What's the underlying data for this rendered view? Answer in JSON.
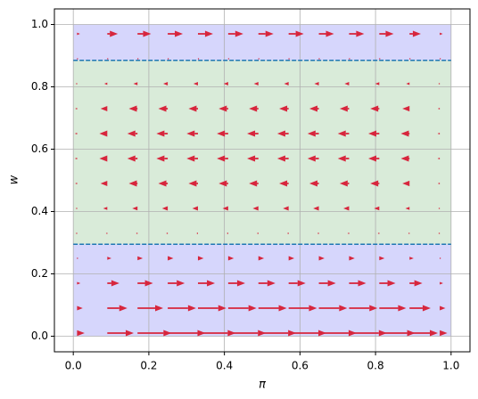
{
  "chart_data": {
    "type": "quiver",
    "xlabel": "π",
    "ylabel": "w",
    "xlim": [
      -0.05,
      1.05
    ],
    "ylim": [
      -0.05,
      1.05
    ],
    "xticks": [
      {
        "value": 0,
        "label": "0.0"
      },
      0.2,
      0.4,
      0.6,
      0.8,
      {
        "value": 1,
        "label": "1.0"
      }
    ],
    "yticks": [
      {
        "value": 0,
        "label": "0.0"
      },
      0.2,
      0.4,
      0.6,
      0.8,
      {
        "value": 1,
        "label": "1.0"
      }
    ],
    "grid": true,
    "regions": [
      {
        "x0": 0,
        "x1": 1,
        "y0": 0,
        "y1": 0.295,
        "color": "#d6d6fc"
      },
      {
        "x0": 0,
        "x1": 1,
        "y0": 0.295,
        "y1": 0.885,
        "color": "#d9ebd9"
      },
      {
        "x0": 0,
        "x1": 1,
        "y0": 0.885,
        "y1": 1,
        "color": "#d6d6fc"
      }
    ],
    "thresholds": [
      0.295,
      0.885
    ],
    "threshold_color": "#1f77b4",
    "color": "#d7263d",
    "x": [
      0.01,
      0.09,
      0.17,
      0.25,
      0.33,
      0.41,
      0.49,
      0.57,
      0.65,
      0.73,
      0.81,
      0.89,
      0.97
    ],
    "y": [
      0.01,
      0.09,
      0.17,
      0.25,
      0.33,
      0.41,
      0.49,
      0.57,
      0.65,
      0.73,
      0.81,
      0.89,
      0.97
    ],
    "u": [
      [
        0.02,
        0.07,
        0.09,
        0.1,
        0.1,
        0.1,
        0.1,
        0.1,
        0.1,
        0.1,
        0.095,
        0.075,
        0.02
      ],
      [
        0.015,
        0.053,
        0.068,
        0.075,
        0.075,
        0.075,
        0.075,
        0.075,
        0.075,
        0.075,
        0.071,
        0.056,
        0.015
      ],
      [
        0.009,
        0.032,
        0.041,
        0.045,
        0.045,
        0.045,
        0.045,
        0.045,
        0.045,
        0.045,
        0.043,
        0.034,
        0.009
      ],
      [
        0.003,
        0.011,
        0.014,
        0.015,
        0.015,
        0.015,
        0.015,
        0.015,
        0.015,
        0.015,
        0.014,
        0.011,
        0.003
      ],
      [
        -0.001,
        -0.003,
        -0.004,
        -0.004,
        -0.004,
        -0.004,
        -0.004,
        -0.004,
        -0.004,
        -0.004,
        -0.004,
        -0.003,
        -0.001
      ],
      [
        -0.003,
        -0.011,
        -0.014,
        -0.015,
        -0.015,
        -0.015,
        -0.015,
        -0.015,
        -0.015,
        -0.015,
        -0.014,
        -0.011,
        -0.003
      ],
      [
        -0.005,
        -0.018,
        -0.023,
        -0.025,
        -0.025,
        -0.025,
        -0.025,
        -0.025,
        -0.025,
        -0.025,
        -0.024,
        -0.019,
        -0.005
      ],
      [
        -0.006,
        -0.021,
        -0.027,
        -0.03,
        -0.03,
        -0.03,
        -0.03,
        -0.03,
        -0.03,
        -0.03,
        -0.029,
        -0.023,
        -0.006
      ],
      [
        -0.006,
        -0.021,
        -0.027,
        -0.03,
        -0.03,
        -0.03,
        -0.03,
        -0.03,
        -0.03,
        -0.03,
        -0.029,
        -0.023,
        -0.006
      ],
      [
        -0.005,
        -0.018,
        -0.023,
        -0.025,
        -0.025,
        -0.025,
        -0.025,
        -0.025,
        -0.025,
        -0.025,
        -0.024,
        -0.019,
        -0.005
      ],
      [
        -0.002,
        -0.008,
        -0.011,
        -0.012,
        -0.012,
        -0.012,
        -0.012,
        -0.012,
        -0.012,
        -0.012,
        -0.011,
        -0.009,
        -0.002
      ],
      [
        0,
        0.001,
        0.002,
        0.002,
        0.002,
        0.002,
        0.002,
        0.002,
        0.002,
        0.002,
        0.002,
        0.002,
        0
      ],
      [
        0.008,
        0.028,
        0.036,
        0.04,
        0.04,
        0.04,
        0.04,
        0.04,
        0.04,
        0.04,
        0.038,
        0.03,
        0.008
      ]
    ]
  }
}
